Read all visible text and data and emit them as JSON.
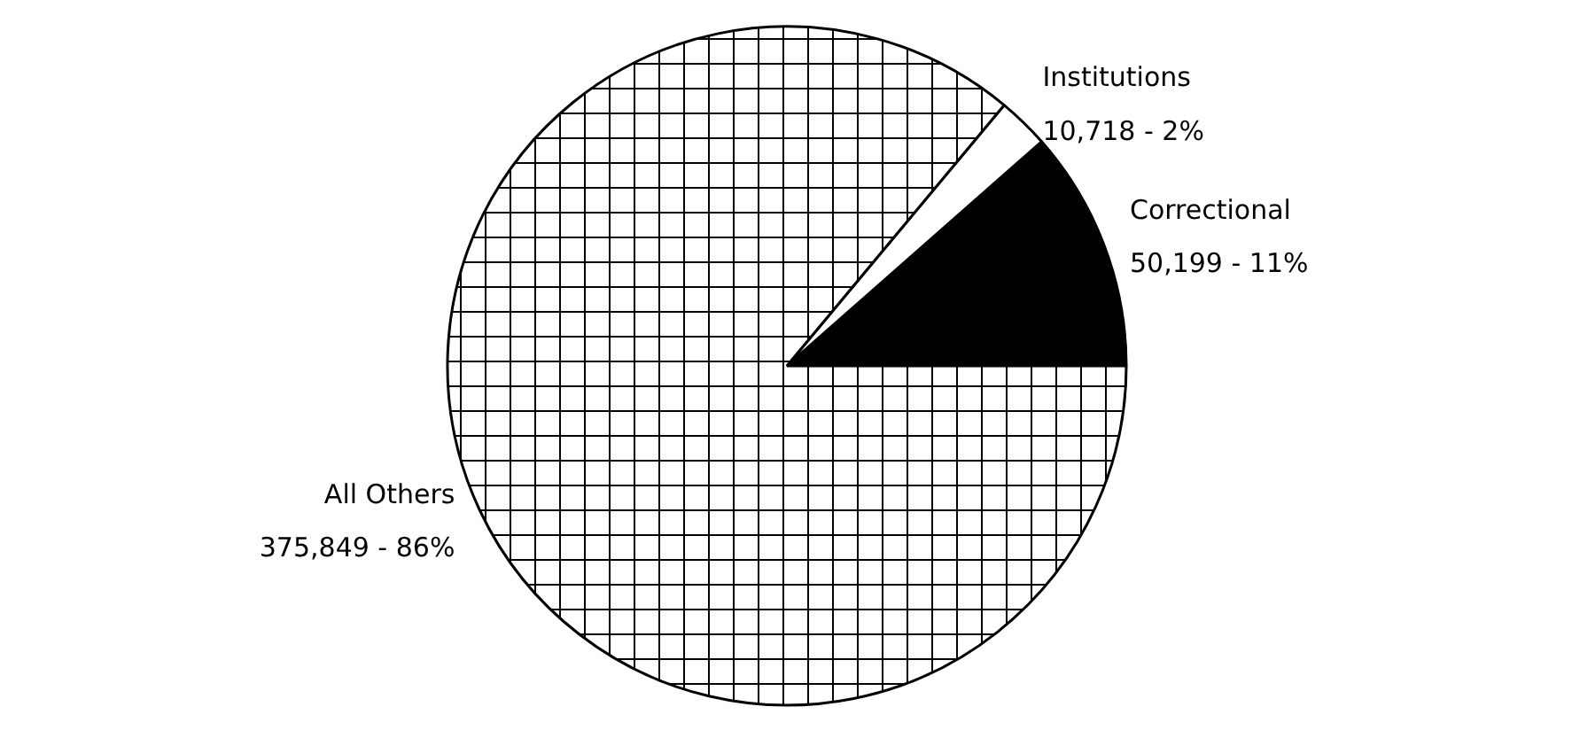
{
  "chart_data": {
    "type": "pie",
    "categories": [
      "Correctional",
      "Institutions",
      "All Others"
    ],
    "values": [
      50199,
      10718,
      375849
    ],
    "value_labels": [
      "50,199 - 11%",
      "10,718 - 2%",
      "375,849 - 86%"
    ],
    "colors": [
      "#000000",
      "#ffffff",
      "#ffffff"
    ]
  }
}
